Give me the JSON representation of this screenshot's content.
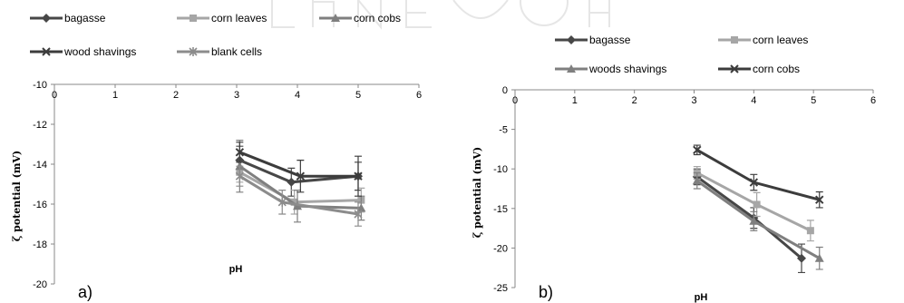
{
  "chart_data": [
    {
      "type": "line",
      "panel_label": "a)",
      "xlabel": "pH",
      "ylabel": "ζ potential (mV)",
      "xlim": [
        0,
        6
      ],
      "ylim": [
        -20,
        -10
      ],
      "x_ticks": [
        0,
        1,
        2,
        3,
        4,
        5,
        6
      ],
      "y_ticks": [
        -10,
        -12,
        -14,
        -16,
        -18,
        -20
      ],
      "x_axis_position": "top",
      "grid": false,
      "legend_position": "top",
      "series": [
        {
          "name": "bagasse",
          "marker": "diamond",
          "color": "#474747",
          "x": [
            3.05,
            3.9,
            5.0
          ],
          "y": [
            -13.8,
            -14.9,
            -14.6
          ],
          "err": [
            0.7,
            0.7,
            0.7
          ]
        },
        {
          "name": "corn leaves",
          "marker": "square",
          "color": "#a6a6a6",
          "x": [
            3.05,
            3.95,
            5.05
          ],
          "y": [
            -14.4,
            -15.9,
            -15.8
          ],
          "err": [
            0.5,
            0.6,
            0.6
          ]
        },
        {
          "name": "corn cobs",
          "marker": "triangle",
          "color": "#7f7f7f",
          "x": [
            3.05,
            4.0,
            5.05
          ],
          "y": [
            -14.1,
            -16.1,
            -16.2
          ],
          "err": [
            1.3,
            0.8,
            0.6
          ]
        },
        {
          "name": "wood shavings",
          "marker": "x",
          "color": "#3c3c3c",
          "x": [
            3.05,
            4.05,
            5.0
          ],
          "y": [
            -13.4,
            -14.6,
            -14.6
          ],
          "err": [
            0.5,
            0.8,
            1.0
          ]
        },
        {
          "name": "blank cells",
          "marker": "star",
          "color": "#8c8c8c",
          "x": [
            3.05,
            3.75,
            5.0
          ],
          "y": [
            -14.6,
            -15.9,
            -16.5
          ],
          "err": [
            0.5,
            0.6,
            0.6
          ]
        }
      ]
    },
    {
      "type": "line",
      "panel_label": "b)",
      "xlabel": "pH",
      "ylabel": "ζ potential (mV)",
      "xlim": [
        0,
        6
      ],
      "ylim": [
        -25,
        0
      ],
      "x_ticks": [
        0,
        1,
        2,
        3,
        4,
        5,
        6
      ],
      "y_ticks": [
        0,
        -5,
        -10,
        -15,
        -20,
        -25
      ],
      "x_axis_position": "top",
      "grid": false,
      "legend_position": "top",
      "series": [
        {
          "name": "bagasse",
          "marker": "diamond",
          "color": "#474747",
          "x": [
            3.05,
            4.0,
            4.8
          ],
          "y": [
            -11.0,
            -16.2,
            -21.3
          ],
          "err": [
            1.0,
            1.3,
            1.8
          ]
        },
        {
          "name": "corn leaves",
          "marker": "square",
          "color": "#a6a6a6",
          "x": [
            3.05,
            4.05,
            4.95
          ],
          "y": [
            -10.5,
            -14.5,
            -17.8
          ],
          "err": [
            0.8,
            1.5,
            1.3
          ]
        },
        {
          "name": "woods shavings",
          "marker": "triangle",
          "color": "#7f7f7f",
          "x": [
            3.05,
            4.0,
            5.1
          ],
          "y": [
            -11.5,
            -16.6,
            -21.3
          ],
          "err": [
            1.0,
            1.2,
            1.4
          ]
        },
        {
          "name": "corn cobs",
          "marker": "x",
          "color": "#3c3c3c",
          "x": [
            3.05,
            4.0,
            5.1
          ],
          "y": [
            -7.6,
            -11.7,
            -13.9
          ],
          "err": [
            0.6,
            1.0,
            1.0
          ]
        }
      ]
    }
  ]
}
